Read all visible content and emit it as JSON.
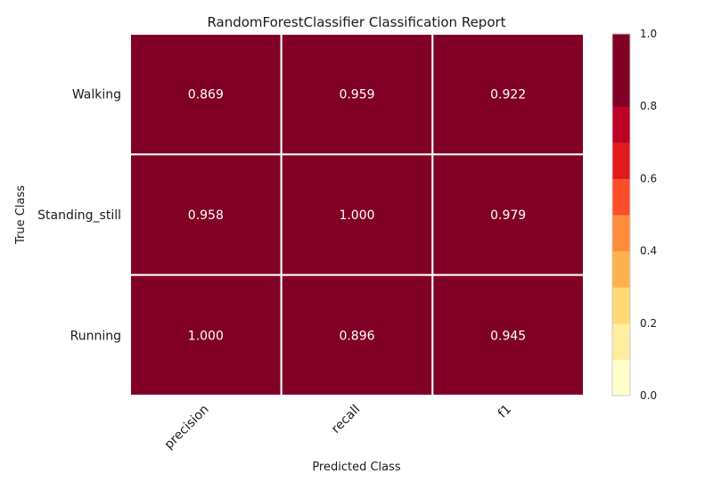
{
  "chart_data": {
    "type": "heatmap",
    "title": "RandomForestClassifier Classification Report",
    "xlabel": "Predicted Class",
    "ylabel": "True Class",
    "rows": [
      "Walking",
      "Standing_still",
      "Running"
    ],
    "columns": [
      "precision",
      "recall",
      "f1"
    ],
    "values": [
      [
        0.869,
        0.959,
        0.922
      ],
      [
        0.958,
        1.0,
        0.979
      ],
      [
        1.0,
        0.896,
        0.945
      ]
    ],
    "cell_labels": [
      [
        "0.869",
        "0.959",
        "0.922"
      ],
      [
        "0.958",
        "1.000",
        "0.979"
      ],
      [
        "1.000",
        "0.896",
        "0.945"
      ]
    ],
    "colorbar": {
      "range": [
        0.0,
        1.0
      ],
      "ticks": [
        "0.0",
        "0.2",
        "0.4",
        "0.6",
        "0.8",
        "1.0"
      ],
      "bins": 10,
      "colors": [
        "#ffffcc",
        "#ffeda0",
        "#fed976",
        "#feb24c",
        "#fd8d3c",
        "#fc4e2a",
        "#e31a1c",
        "#bd0026",
        "#800026",
        "#800026"
      ]
    }
  }
}
